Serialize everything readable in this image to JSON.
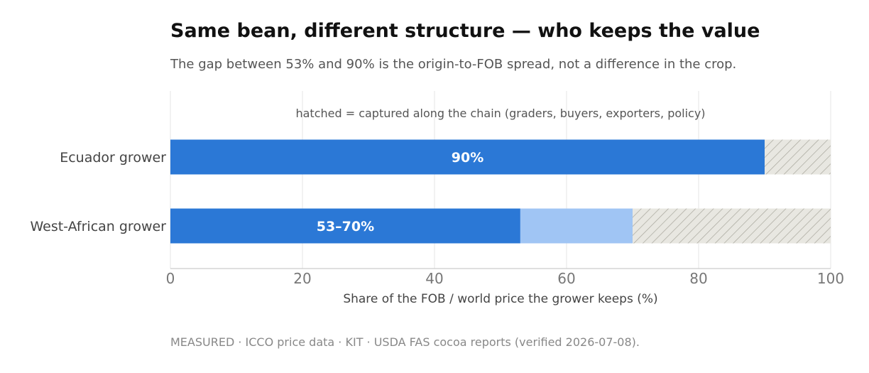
{
  "title": "Same bean, different structure — who keeps the value",
  "subtitle": "The gap between 53% and 90% is the origin-to-FOB spread, not a difference in the crop.",
  "source": "MEASURED · ICCO price data · KIT · USDA FAS cocoa reports (verified 2026-07-08).",
  "chart_data": {
    "type": "bar",
    "orientation": "horizontal",
    "stacked": true,
    "categories": [
      "Ecuador grower",
      "West-African grower"
    ],
    "segments": [
      {
        "values": [
          90,
          53
        ],
        "color": "#2b78d6"
      },
      {
        "values": [
          0,
          17
        ],
        "color": "#a0c5f4"
      },
      {
        "values": [
          10,
          30
        ],
        "color": "#e8e7e1",
        "pattern": "hatched"
      }
    ],
    "bar_labels": [
      "90%",
      "53–70%"
    ],
    "annotation": "hatched = captured along the chain (graders, buyers, exporters, policy)",
    "xlabel": "Share of the FOB / world price the grower keeps  (%)",
    "xlim": [
      0,
      100
    ],
    "xticks": [
      0,
      20,
      40,
      60,
      80,
      100
    ],
    "grid": true
  }
}
